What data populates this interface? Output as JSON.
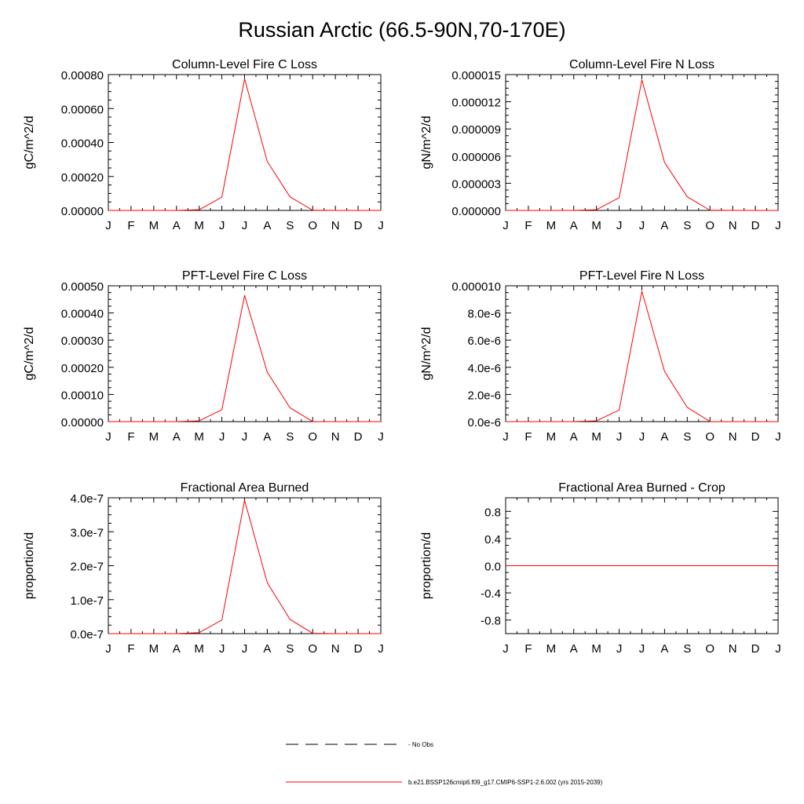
{
  "page": {
    "title": "Russian Arctic (66.5-90N,70-170E)"
  },
  "colors": {
    "series": "#ff0000",
    "axis": "#000000",
    "obs_line": "#000000"
  },
  "legend": {
    "placement": "bottom-center",
    "items": [
      {
        "label": "No Obs",
        "style": "dashed",
        "color": "#000000"
      },
      {
        "label": "b.e21.BSSP126cmip6.f09_g17.CMIP6-SSP1-2.6.002 (yrs 2015-2039)",
        "style": "solid",
        "color": "#ff0000"
      }
    ]
  },
  "chart_data": [
    {
      "type": "line",
      "title": "Column-Level Fire C Loss",
      "ylabel": "gC/m^2/d",
      "categories": [
        "J",
        "F",
        "M",
        "A",
        "M",
        "J",
        "J",
        "A",
        "S",
        "O",
        "N",
        "D",
        "J"
      ],
      "ylim": [
        0,
        0.0008
      ],
      "yticks": [
        0,
        0.0002,
        0.0004,
        0.0006,
        0.0008
      ],
      "ytick_labels": [
        "0.00000",
        "0.00020",
        "0.00040",
        "0.00060",
        "0.00080"
      ],
      "series": [
        {
          "values": [
            0,
            0,
            0,
            0,
            4e-06,
            7.8e-05,
            0.000775,
            0.000288,
            8e-05,
            1e-06,
            0,
            0,
            0
          ]
        }
      ]
    },
    {
      "type": "line",
      "title": "Column-Level Fire N Loss",
      "ylabel": "gN/m^2/d",
      "categories": [
        "J",
        "F",
        "M",
        "A",
        "M",
        "J",
        "J",
        "A",
        "S",
        "O",
        "N",
        "D",
        "J"
      ],
      "ylim": [
        0,
        1.5e-05
      ],
      "yticks": [
        0,
        3e-06,
        6e-06,
        9e-06,
        1.2e-05,
        1.5e-05
      ],
      "ytick_labels": [
        "0.000000",
        "0.000003",
        "0.000006",
        "0.000009",
        "0.000012",
        "0.000015"
      ],
      "series": [
        {
          "values": [
            0,
            0,
            0,
            0,
            8e-08,
            1.4e-06,
            1.44e-05,
            5.3e-06,
            1.5e-06,
            2e-08,
            0,
            0,
            0
          ]
        }
      ]
    },
    {
      "type": "line",
      "title": "PFT-Level Fire C Loss",
      "ylabel": "gC/m^2/d",
      "categories": [
        "J",
        "F",
        "M",
        "A",
        "M",
        "J",
        "J",
        "A",
        "S",
        "O",
        "N",
        "D",
        "J"
      ],
      "ylim": [
        0,
        0.0005
      ],
      "yticks": [
        0,
        0.0001,
        0.0002,
        0.0003,
        0.0004,
        0.0005
      ],
      "ytick_labels": [
        "0.00000",
        "0.00010",
        "0.00020",
        "0.00030",
        "0.00040",
        "0.00050"
      ],
      "series": [
        {
          "values": [
            0,
            0,
            0,
            0,
            3e-06,
            4.4e-05,
            0.000465,
            0.000182,
            5.1e-05,
            5e-07,
            0,
            0,
            0
          ]
        }
      ]
    },
    {
      "type": "line",
      "title": "PFT-Level Fire N Loss",
      "ylabel": "gN/m^2/d",
      "categories": [
        "J",
        "F",
        "M",
        "A",
        "M",
        "J",
        "J",
        "A",
        "S",
        "O",
        "N",
        "D",
        "J"
      ],
      "ylim": [
        0,
        1e-05
      ],
      "yticks": [
        0,
        2e-06,
        4e-06,
        6e-06,
        8e-06,
        1e-05
      ],
      "ytick_labels": [
        "0.0e-6",
        "2.0e-6",
        "4.0e-6",
        "6.0e-6",
        "8.0e-6",
        "0.000010"
      ],
      "series": [
        {
          "values": [
            0,
            0,
            0,
            0,
            6e-08,
            8.5e-07,
            9.6e-06,
            3.7e-06,
            1.05e-06,
            1e-08,
            0,
            0,
            0
          ]
        }
      ]
    },
    {
      "type": "line",
      "title": "Fractional Area Burned",
      "ylabel": "proportion/d",
      "categories": [
        "J",
        "F",
        "M",
        "A",
        "M",
        "J",
        "J",
        "A",
        "S",
        "O",
        "N",
        "D",
        "J"
      ],
      "ylim": [
        0,
        4e-07
      ],
      "yticks": [
        0,
        1e-07,
        2e-07,
        3e-07,
        4e-07
      ],
      "ytick_labels": [
        "0.0e-7",
        "1.0e-7",
        "2.0e-7",
        "3.0e-7",
        "4.0e-7"
      ],
      "series": [
        {
          "values": [
            0,
            0,
            0,
            0,
            3e-09,
            4e-08,
            3.93e-07,
            1.5e-07,
            4.2e-08,
            1e-09,
            0,
            0,
            0
          ]
        }
      ]
    },
    {
      "type": "line",
      "title": "Fractional Area Burned - Crop",
      "ylabel": "proportion/d",
      "categories": [
        "J",
        "F",
        "M",
        "A",
        "M",
        "J",
        "J",
        "A",
        "S",
        "O",
        "N",
        "D",
        "J"
      ],
      "ylim": [
        -1,
        1
      ],
      "yticks": [
        -0.8,
        -0.4,
        0,
        0.4,
        0.8
      ],
      "ytick_labels": [
        "-0.8",
        "-0.4",
        "0.0",
        "0.4",
        "0.8"
      ],
      "series": [
        {
          "values": [
            0,
            0,
            0,
            0,
            0,
            0,
            0,
            0,
            0,
            0,
            0,
            0,
            0
          ]
        }
      ]
    }
  ]
}
